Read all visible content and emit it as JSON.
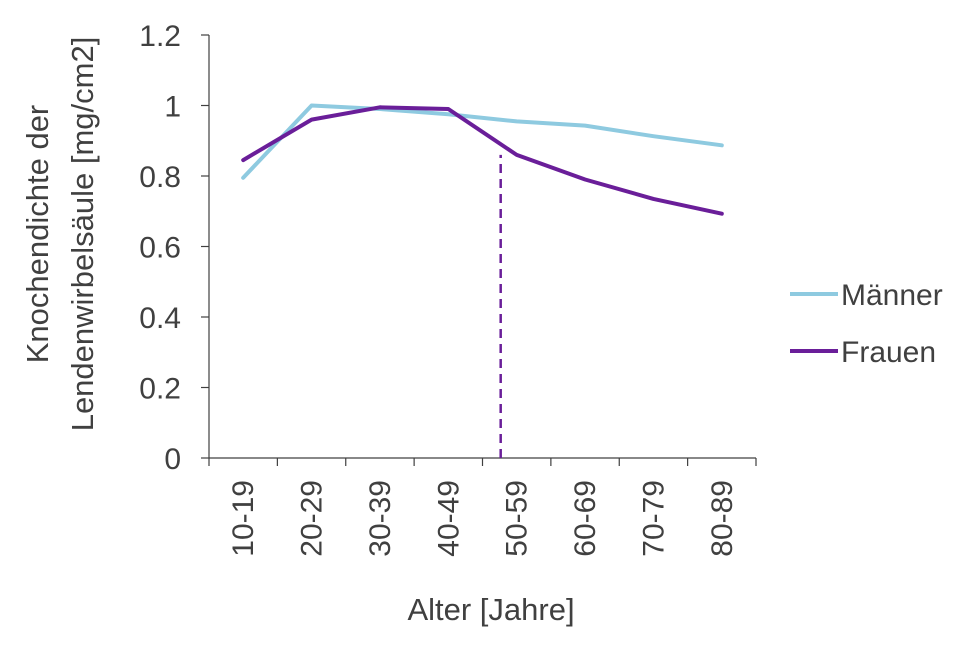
{
  "chart_data": {
    "type": "line",
    "categories": [
      "10-19",
      "20-29",
      "30-39",
      "40-49",
      "50-59",
      "60-69",
      "70-79",
      "80-89"
    ],
    "series": [
      {
        "name": "Männer",
        "color": "#8ecae0",
        "values": [
          0.795,
          1.0,
          0.99,
          0.975,
          0.955,
          0.943,
          0.913,
          0.887
        ]
      },
      {
        "name": "Frauen",
        "color": "#6a1e99",
        "values": [
          0.845,
          0.96,
          0.995,
          0.99,
          0.86,
          0.79,
          0.735,
          0.693
        ]
      }
    ],
    "ylabel": [
      "Knochendichte der",
      "Lendenwirbelsäule [mg/cm2]"
    ],
    "xlabel": "Alter [Jahre]",
    "ylim": [
      0,
      1.2
    ],
    "yticks": [
      0,
      0.2,
      0.4,
      0.6,
      0.8,
      1,
      1.2
    ],
    "ytick_labels": [
      "0",
      "0.2",
      "0.4",
      "0.6",
      "0.8",
      "1",
      "1.2"
    ],
    "annotation": {
      "type": "vertical-dashed-line",
      "category": "50-59",
      "from": 0,
      "to": 0.86,
      "color": "#6a1e99"
    },
    "legend_position": "right",
    "grid": false
  }
}
